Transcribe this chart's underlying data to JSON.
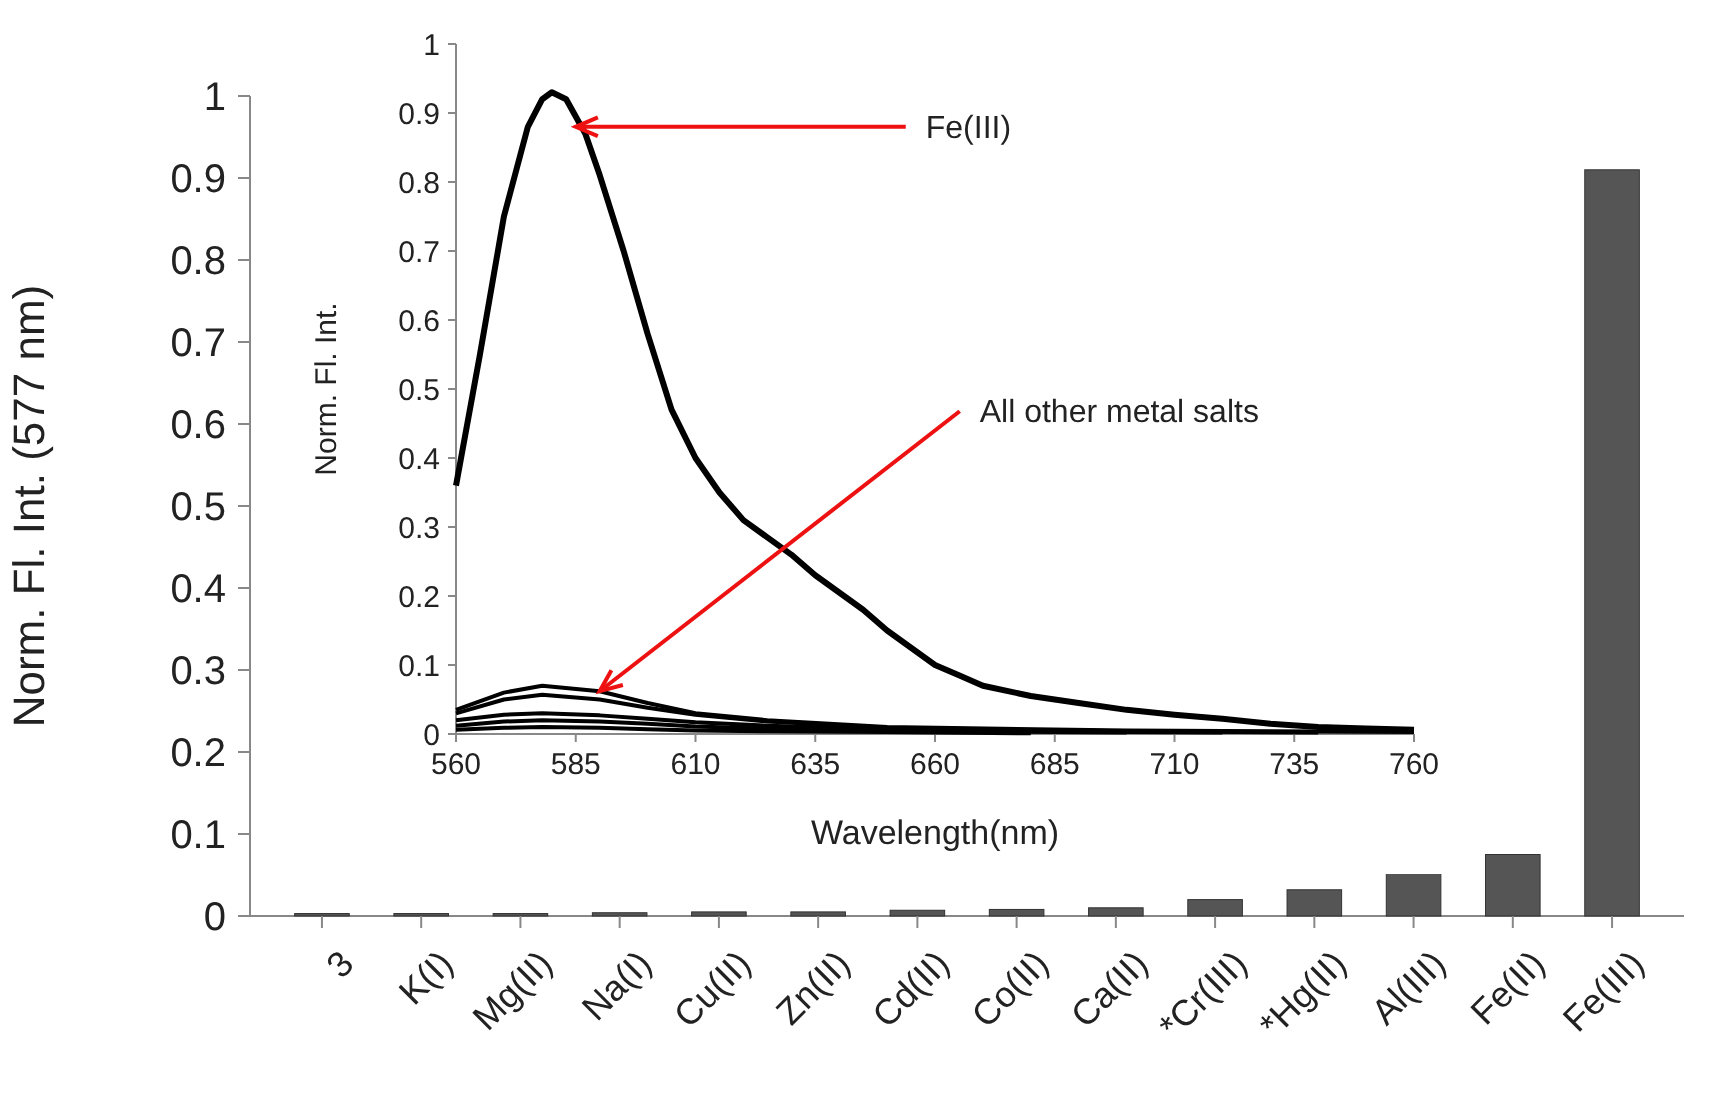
{
  "chart_data": [
    {
      "type": "bar",
      "ylabel": "Norm. Fl. Int. (577 nm)",
      "categories": [
        "3",
        "K(I)",
        "Mg(II)",
        "Na(I)",
        "Cu(II)",
        "Zn(II)",
        "Cd(II)",
        "Co(II)",
        "Ca(II)",
        "*Cr(III)",
        "*Hg(II)",
        "Al(III)",
        "Fe(II)",
        "Fe(III)"
      ],
      "values": [
        0.003,
        0.003,
        0.003,
        0.004,
        0.005,
        0.005,
        0.007,
        0.008,
        0.01,
        0.02,
        0.032,
        0.055,
        0.075,
        0.91
      ],
      "color": "#555555",
      "ylim": [
        0,
        1
      ],
      "yticks": [
        0,
        0.1,
        0.2,
        0.3,
        0.4,
        0.5,
        0.6,
        0.7,
        0.8,
        0.9,
        1
      ],
      "grid": false
    },
    {
      "type": "line",
      "xlabel": "Wavelength(nm)",
      "ylabel": "Norm. Fl. Int.",
      "xlim": [
        560,
        760
      ],
      "xticks": [
        560,
        585,
        610,
        635,
        660,
        685,
        710,
        735,
        760
      ],
      "ylim": [
        0,
        1
      ],
      "yticks": [
        0,
        0.1,
        0.2,
        0.3,
        0.4,
        0.5,
        0.6,
        0.7,
        0.8,
        0.9,
        1
      ],
      "grid": false,
      "series": [
        {
          "color": "#000000",
          "x": [
            560,
            565,
            570,
            575,
            578,
            580,
            583,
            587,
            590,
            595,
            600,
            605,
            610,
            615,
            620,
            625,
            630,
            635,
            640,
            645,
            650,
            655,
            660,
            665,
            670,
            680,
            690,
            700,
            710,
            720,
            730,
            740,
            750,
            760
          ],
          "values": [
            0.36,
            0.55,
            0.75,
            0.88,
            0.92,
            0.93,
            0.92,
            0.87,
            0.81,
            0.7,
            0.58,
            0.47,
            0.4,
            0.35,
            0.31,
            0.285,
            0.26,
            0.23,
            0.205,
            0.18,
            0.15,
            0.125,
            0.1,
            0.085,
            0.07,
            0.055,
            0.045,
            0.035,
            0.028,
            0.022,
            0.015,
            0.01,
            0.008,
            0.006
          ]
        },
        {
          "color": "#000000",
          "x": [
            560,
            570,
            578,
            590,
            600,
            610,
            625,
            650,
            700,
            760
          ],
          "values": [
            0.035,
            0.06,
            0.07,
            0.062,
            0.045,
            0.03,
            0.02,
            0.01,
            0.005,
            0.003
          ]
        },
        {
          "color": "#000000",
          "x": [
            560,
            570,
            578,
            590,
            600,
            610,
            625,
            650,
            700,
            740
          ],
          "values": [
            0.03,
            0.05,
            0.057,
            0.05,
            0.038,
            0.028,
            0.018,
            0.009,
            0.004,
            0.002
          ]
        },
        {
          "color": "#000000",
          "x": [
            560,
            570,
            578,
            590,
            600,
            610,
            625,
            650,
            700,
            720
          ],
          "values": [
            0.02,
            0.028,
            0.03,
            0.027,
            0.022,
            0.017,
            0.012,
            0.007,
            0.003,
            0.002
          ]
        },
        {
          "color": "#000000",
          "x": [
            560,
            570,
            578,
            590,
            600,
            610,
            625,
            650,
            700
          ],
          "values": [
            0.012,
            0.018,
            0.02,
            0.018,
            0.015,
            0.011,
            0.008,
            0.005,
            0.002
          ]
        },
        {
          "color": "#000000",
          "x": [
            560,
            570,
            578,
            590,
            600,
            610,
            625,
            650,
            680
          ],
          "values": [
            0.006,
            0.009,
            0.01,
            0.009,
            0.007,
            0.005,
            0.004,
            0.003,
            0.001
          ]
        }
      ],
      "annotations": [
        {
          "text": "Fe(III)",
          "x": 585,
          "y": 0.88
        },
        {
          "text": "All other metal salts",
          "x": 590,
          "y": 0.062
        }
      ]
    }
  ]
}
